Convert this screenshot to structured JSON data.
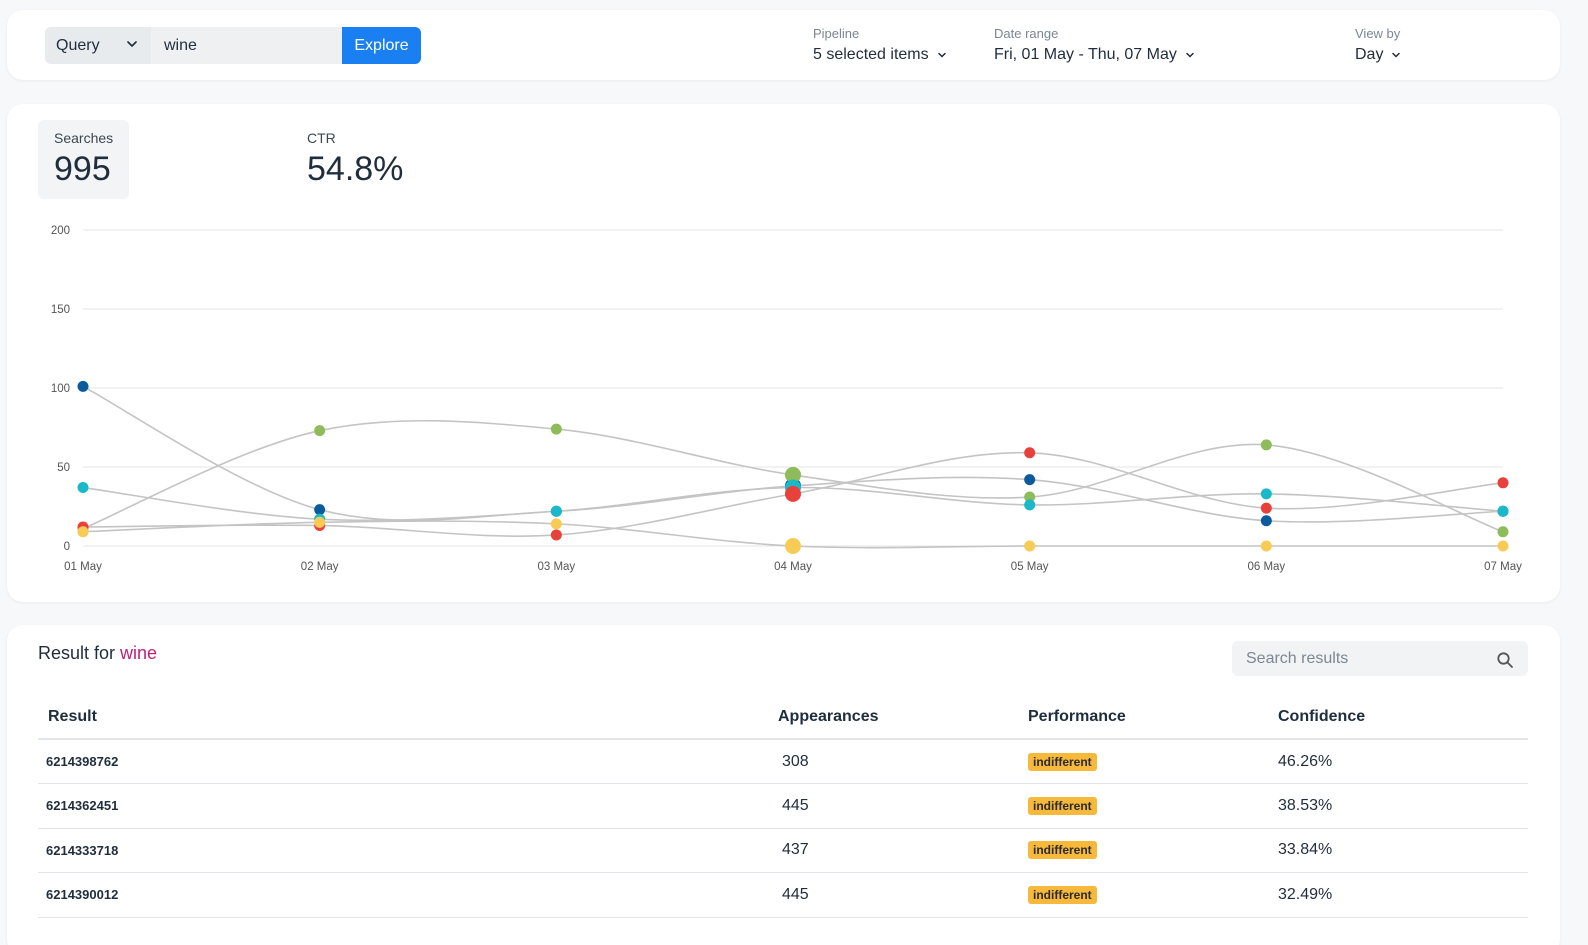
{
  "topbar": {
    "query_select_label": "Query",
    "query_value": "wine",
    "explore_label": "Explore",
    "filters": {
      "pipeline_label": "Pipeline",
      "pipeline_value": "5 selected items",
      "date_label": "Date range",
      "date_value": "Fri, 01 May - Thu, 07 May",
      "viewby_label": "View by",
      "viewby_value": "Day"
    }
  },
  "metrics": {
    "searches_label": "Searches",
    "searches_value": "995",
    "ctr_label": "CTR",
    "ctr_value": "54.8%"
  },
  "chart_data": {
    "type": "line",
    "categories": [
      "01 May",
      "02 May",
      "03 May",
      "04 May",
      "05 May",
      "06 May",
      "07 May"
    ],
    "ylim": [
      0,
      200
    ],
    "yticks": [
      0,
      50,
      100,
      150,
      200
    ],
    "grid": true,
    "line_color": "#c4c4c4",
    "series": [
      {
        "color": "#0a5a9c",
        "values": [
          101,
          23,
          22,
          38,
          42,
          16,
          22
        ]
      },
      {
        "color": "#8fbc5a",
        "values": [
          11,
          73,
          74,
          45,
          31,
          64,
          9
        ]
      },
      {
        "color": "#1ab9c9",
        "values": [
          37,
          17,
          22,
          37,
          26,
          33,
          22
        ]
      },
      {
        "color": "#e8413c",
        "values": [
          12,
          13,
          7,
          33,
          59,
          24,
          40
        ]
      },
      {
        "color": "#f8cb55",
        "values": [
          9,
          15,
          14,
          0,
          0,
          0,
          0
        ]
      }
    ],
    "highlight_index": 3
  },
  "results": {
    "title_prefix": "Result for",
    "query": "wine",
    "search_placeholder": "Search results",
    "columns": [
      "Result",
      "Appearances",
      "Performance",
      "Confidence"
    ],
    "rows": [
      {
        "result": "6214398762",
        "appearances": "308",
        "performance": "indifferent",
        "confidence": "46.26%"
      },
      {
        "result": "6214362451",
        "appearances": "445",
        "performance": "indifferent",
        "confidence": "38.53%"
      },
      {
        "result": "6214333718",
        "appearances": "437",
        "performance": "indifferent",
        "confidence": "33.84%"
      },
      {
        "result": "6214390012",
        "appearances": "445",
        "performance": "indifferent",
        "confidence": "32.49%"
      }
    ],
    "badge_color": "#f6b93b"
  }
}
